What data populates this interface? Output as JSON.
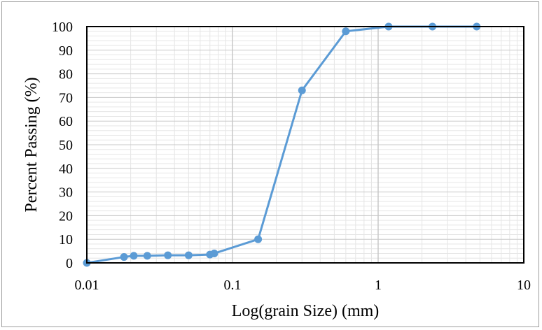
{
  "chart_data": {
    "type": "line",
    "title": "",
    "xlabel": "Log(grain Size) (mm)",
    "ylabel": "Percent Passing (%)",
    "x_scale": "log",
    "xlim": [
      0.01,
      10
    ],
    "ylim": [
      0,
      100
    ],
    "x_ticks": [
      "0.01",
      "0.1",
      "1",
      "10"
    ],
    "y_ticks": [
      "0",
      "10",
      "20",
      "30",
      "40",
      "50",
      "60",
      "70",
      "80",
      "90",
      "100"
    ],
    "grid": true,
    "legend": "none",
    "series": [
      {
        "color": "#5b9bd5",
        "marker": "circle",
        "x": [
          0.01,
          0.018,
          0.021,
          0.026,
          0.036,
          0.05,
          0.07,
          0.075,
          0.15,
          0.3,
          0.6,
          1.18,
          2.36,
          4.75
        ],
        "y": [
          0,
          2.5,
          3,
          3,
          3.2,
          3.2,
          3.5,
          4,
          10,
          73,
          98,
          100,
          100,
          100
        ]
      }
    ],
    "colors": {
      "line": "#5b9bd5",
      "major_grid": "#c8c8c8",
      "minor_grid": "#e6e6e6",
      "plot_border": "#000000"
    }
  }
}
